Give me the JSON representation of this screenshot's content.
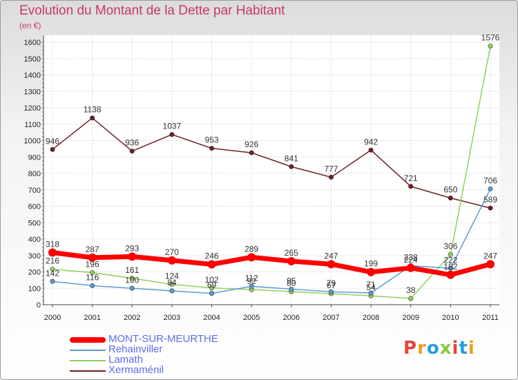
{
  "header": {
    "title": "Evolution du Montant de la Dette par Habitant",
    "subtitle": "(en €)"
  },
  "logo": {
    "text": "Proxiti",
    "colors": [
      "#e8433b",
      "#f29b21",
      "#1f9fe0",
      "#8cc63f",
      "#e8433b",
      "#1f9fe0",
      "#f29b21"
    ]
  },
  "chart_data": {
    "type": "line",
    "title": "Evolution du Montant de la Dette par Habitant",
    "ylabel": "(en €)",
    "xlabel": "",
    "x": [
      "2000",
      "2001",
      "2002",
      "2003",
      "2004",
      "2005",
      "2006",
      "2007",
      "2008",
      "2009",
      "2010",
      "2011"
    ],
    "ylim": [
      0,
      1600
    ],
    "yticks": [
      0,
      100,
      200,
      300,
      400,
      500,
      600,
      700,
      800,
      900,
      1000,
      1100,
      1200,
      1300,
      1400,
      1500,
      1600
    ],
    "grid": true,
    "legend_position": "bottom-left",
    "series": [
      {
        "name": "Xermaménil",
        "color": "#6e1e24",
        "values": [
          946,
          1138,
          936,
          1037,
          953,
          926,
          841,
          777,
          942,
          721,
          650,
          589
        ],
        "labels": [
          "946",
          "1138",
          "936",
          "1037",
          "953",
          "926",
          "841",
          "777",
          "942",
          "721",
          "650",
          "589"
        ]
      },
      {
        "name": "Lamath",
        "color": "#8fd05a",
        "values": [
          216,
          196,
          161,
          124,
          102,
          92,
          80,
          67,
          54,
          38,
          306,
          1576
        ],
        "labels": [
          "216",
          "196",
          "161",
          "124",
          "102",
          "92",
          "80",
          "67",
          "54",
          "38",
          "306",
          "1576"
        ]
      },
      {
        "name": "Rehainviller",
        "color": "#5b9bd5",
        "values": [
          142,
          116,
          100,
          84,
          69,
          112,
          95,
          79,
          71,
          238,
          222,
          706
        ],
        "labels": [
          "142",
          "116",
          "100",
          "84",
          "69",
          "112",
          "95",
          "79",
          "71",
          "238",
          "222",
          "706"
        ]
      },
      {
        "name": "MONT-SUR-MEURTHE",
        "color": "#ff0000",
        "values": [
          318,
          287,
          293,
          270,
          246,
          289,
          265,
          247,
          199,
          224,
          182,
          247
        ],
        "labels": [
          "318",
          "287",
          "293",
          "270",
          "246",
          "289",
          "265",
          "247",
          "199",
          "224",
          "182",
          "247"
        ]
      }
    ]
  },
  "legend": {
    "items": [
      {
        "name": "MONT-SUR-MEURTHE",
        "color": "#ff0000"
      },
      {
        "name": "Rehainviller",
        "color": "#5b9bd5"
      },
      {
        "name": "Lamath",
        "color": "#8fd05a"
      },
      {
        "name": "Xermaménil",
        "color": "#6e1e24"
      }
    ]
  }
}
